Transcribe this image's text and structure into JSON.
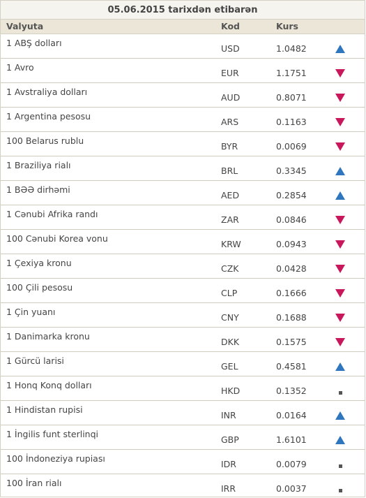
{
  "title": "05.06.2015 tarixdən etibarən",
  "columns": {
    "currency": "Valyuta",
    "code": "Kod",
    "rate": "Kurs"
  },
  "colors": {
    "up": "#2e76bd",
    "down": "#c8185b",
    "unchanged": "#555555"
  },
  "rows": [
    {
      "name": "1 ABŞ dolları",
      "code": "USD",
      "rate": "1.0482",
      "trend": "up"
    },
    {
      "name": "1 Avro",
      "code": "EUR",
      "rate": "1.1751",
      "trend": "down"
    },
    {
      "name": "1 Avstraliya dolları",
      "code": "AUD",
      "rate": "0.8071",
      "trend": "down"
    },
    {
      "name": "1 Argentina pesosu",
      "code": "ARS",
      "rate": "0.1163",
      "trend": "down"
    },
    {
      "name": "100 Belarus rublu",
      "code": "BYR",
      "rate": "0.0069",
      "trend": "down"
    },
    {
      "name": "1 Braziliya rialı",
      "code": "BRL",
      "rate": "0.3345",
      "trend": "up"
    },
    {
      "name": "1 BƏƏ dirhəmi",
      "code": "AED",
      "rate": "0.2854",
      "trend": "up"
    },
    {
      "name": "1 Cənubi Afrika randı",
      "code": "ZAR",
      "rate": "0.0846",
      "trend": "down"
    },
    {
      "name": "100 Cənubi Korea vonu",
      "code": "KRW",
      "rate": "0.0943",
      "trend": "down"
    },
    {
      "name": "1 Çexiya kronu",
      "code": "CZK",
      "rate": "0.0428",
      "trend": "down"
    },
    {
      "name": "100 Çili pesosu",
      "code": "CLP",
      "rate": "0.1666",
      "trend": "down"
    },
    {
      "name": "1 Çin yuanı",
      "code": "CNY",
      "rate": "0.1688",
      "trend": "down"
    },
    {
      "name": "1 Danimarka kronu",
      "code": "DKK",
      "rate": "0.1575",
      "trend": "down"
    },
    {
      "name": "1 Gürcü larisi",
      "code": "GEL",
      "rate": "0.4581",
      "trend": "up"
    },
    {
      "name": "1 Honq Konq dolları",
      "code": "HKD",
      "rate": "0.1352",
      "trend": "same"
    },
    {
      "name": "1 Hindistan rupisi",
      "code": "INR",
      "rate": "0.0164",
      "trend": "up"
    },
    {
      "name": "1 İngilis funt sterlinqi",
      "code": "GBP",
      "rate": "1.6101",
      "trend": "up"
    },
    {
      "name": "100 İndoneziya rupiası",
      "code": "IDR",
      "rate": "0.0079",
      "trend": "same"
    },
    {
      "name": "100 İran rialı",
      "code": "IRR",
      "rate": "0.0037",
      "trend": "same"
    }
  ]
}
